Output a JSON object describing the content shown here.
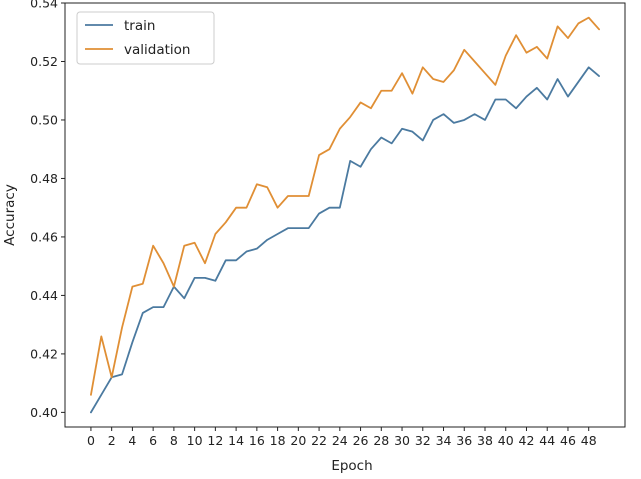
{
  "chart_data": {
    "type": "line",
    "xlabel": "Epoch",
    "ylabel": "Accuracy",
    "xlim": [
      -2.5,
      51.5
    ],
    "ylim": [
      0.395,
      0.54
    ],
    "xticks": [
      0,
      2,
      4,
      6,
      8,
      10,
      12,
      14,
      16,
      18,
      20,
      22,
      24,
      26,
      28,
      30,
      32,
      34,
      36,
      38,
      40,
      42,
      44,
      46,
      48
    ],
    "yticks": [
      0.4,
      0.42,
      0.44,
      0.46,
      0.48,
      0.5,
      0.52,
      0.54
    ],
    "ytick_labels": [
      "0.40",
      "0.42",
      "0.44",
      "0.46",
      "0.48",
      "0.50",
      "0.52",
      "0.54"
    ],
    "grid": false,
    "legend_position": "upper-left",
    "x": [
      0,
      1,
      2,
      3,
      4,
      5,
      6,
      7,
      8,
      9,
      10,
      11,
      12,
      13,
      14,
      15,
      16,
      17,
      18,
      19,
      20,
      21,
      22,
      23,
      24,
      25,
      26,
      27,
      28,
      29,
      30,
      31,
      32,
      33,
      34,
      35,
      36,
      37,
      38,
      39,
      40,
      41,
      42,
      43,
      44,
      45,
      46,
      47,
      48,
      49
    ],
    "series": [
      {
        "name": "train",
        "color": "#4b7aa0",
        "values": [
          0.4,
          0.406,
          0.412,
          0.413,
          0.424,
          0.434,
          0.436,
          0.436,
          0.443,
          0.439,
          0.446,
          0.446,
          0.445,
          0.452,
          0.452,
          0.455,
          0.456,
          0.459,
          0.461,
          0.463,
          0.463,
          0.463,
          0.468,
          0.47,
          0.47,
          0.486,
          0.484,
          0.49,
          0.494,
          0.492,
          0.497,
          0.496,
          0.493,
          0.5,
          0.502,
          0.499,
          0.5,
          0.502,
          0.5,
          0.507,
          0.507,
          0.504,
          0.508,
          0.511,
          0.507,
          0.514,
          0.508,
          0.513,
          0.518,
          0.515
        ]
      },
      {
        "name": "validation",
        "color": "#e08f35",
        "values": [
          0.406,
          0.426,
          0.412,
          0.429,
          0.443,
          0.444,
          0.457,
          0.451,
          0.443,
          0.457,
          0.458,
          0.451,
          0.461,
          0.465,
          0.47,
          0.47,
          0.478,
          0.477,
          0.47,
          0.474,
          0.474,
          0.474,
          0.488,
          0.49,
          0.497,
          0.501,
          0.506,
          0.504,
          0.51,
          0.51,
          0.516,
          0.509,
          0.518,
          0.514,
          0.513,
          0.517,
          0.524,
          0.52,
          0.516,
          0.512,
          0.522,
          0.529,
          0.523,
          0.525,
          0.521,
          0.532,
          0.528,
          0.533,
          0.535,
          0.531
        ]
      }
    ]
  }
}
